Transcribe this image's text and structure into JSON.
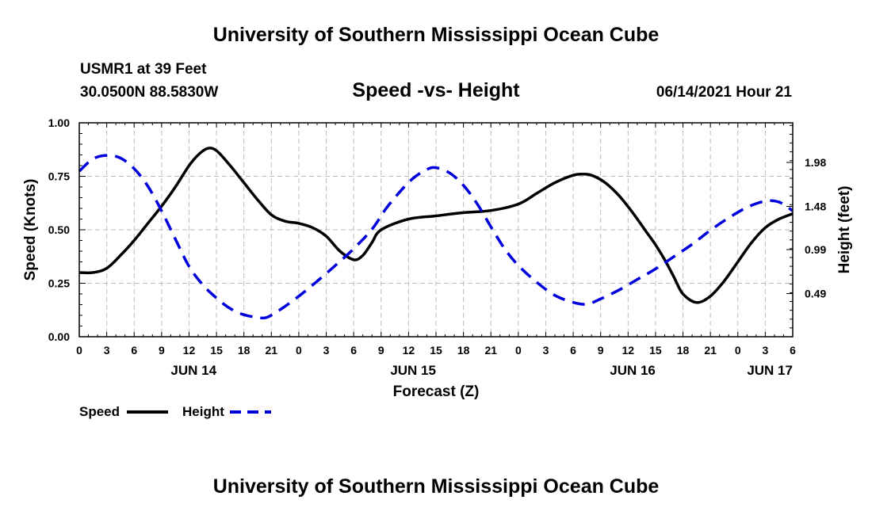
{
  "header": {
    "title": "University of Southern Mississippi Ocean Cube",
    "station": "USMR1 at 39 Feet",
    "coords": "30.0500N  88.5830W",
    "subtitle": "Speed -vs- Height",
    "datetime": "06/14/2021 Hour 21"
  },
  "footer": {
    "title": "University of Southern Mississippi Ocean Cube"
  },
  "legend": {
    "speed_label": "Speed",
    "height_label": "Height"
  },
  "chart_data": {
    "type": "line",
    "title": "Speed -vs- Height",
    "xlabel": "Forecast (Z)",
    "ylabel": "Speed (Knots)",
    "y2label": "Height (feet)",
    "x_hour_range": [
      0,
      78
    ],
    "xticks": [
      {
        "h": 0,
        "label": "0"
      },
      {
        "h": 3,
        "label": "3"
      },
      {
        "h": 6,
        "label": "6"
      },
      {
        "h": 9,
        "label": "9"
      },
      {
        "h": 12,
        "label": "12"
      },
      {
        "h": 15,
        "label": "15"
      },
      {
        "h": 18,
        "label": "18"
      },
      {
        "h": 21,
        "label": "21"
      },
      {
        "h": 24,
        "label": "0"
      },
      {
        "h": 27,
        "label": "3"
      },
      {
        "h": 30,
        "label": "6"
      },
      {
        "h": 33,
        "label": "9"
      },
      {
        "h": 36,
        "label": "12"
      },
      {
        "h": 39,
        "label": "15"
      },
      {
        "h": 42,
        "label": "18"
      },
      {
        "h": 45,
        "label": "21"
      },
      {
        "h": 48,
        "label": "0"
      },
      {
        "h": 51,
        "label": "3"
      },
      {
        "h": 54,
        "label": "6"
      },
      {
        "h": 57,
        "label": "9"
      },
      {
        "h": 60,
        "label": "12"
      },
      {
        "h": 63,
        "label": "15"
      },
      {
        "h": 66,
        "label": "18"
      },
      {
        "h": 69,
        "label": "21"
      },
      {
        "h": 72,
        "label": "0"
      },
      {
        "h": 75,
        "label": "3"
      },
      {
        "h": 78,
        "label": "6"
      }
    ],
    "day_labels": [
      {
        "h": 12.5,
        "label": "JUN 14"
      },
      {
        "h": 36.5,
        "label": "JUN 15"
      },
      {
        "h": 60.5,
        "label": "JUN 16"
      },
      {
        "h": 75.5,
        "label": "JUN 17"
      }
    ],
    "ylim": [
      0,
      1
    ],
    "yticks": [
      0,
      0.25,
      0.5,
      0.75,
      1
    ],
    "ytick_labels": [
      "0.00",
      "0.25",
      "0.50",
      "0.75",
      "1.00"
    ],
    "y2lim": [
      0,
      2.43
    ],
    "y2ticks": [
      0.49,
      0.99,
      1.48,
      1.98
    ],
    "y2tick_labels": [
      "0.49",
      "0.99",
      "1.48",
      "1.98"
    ],
    "grid": true,
    "series": [
      {
        "name": "Speed",
        "axis": "left",
        "color": "#000000",
        "dashed": false,
        "x": [
          0,
          1.5,
          3,
          4.5,
          6,
          7.5,
          9,
          10.5,
          12,
          13,
          14,
          15,
          16.5,
          18,
          19.5,
          21,
          22.5,
          24,
          25.5,
          27,
          28.5,
          30,
          31,
          32,
          33,
          36,
          39,
          42,
          45,
          48,
          50,
          52,
          54,
          55,
          56,
          57.5,
          59,
          60.5,
          62,
          63,
          64,
          65,
          66,
          67.5,
          69,
          70.5,
          72,
          73.5,
          75,
          76.5,
          78
        ],
        "values": [
          0.3,
          0.3,
          0.32,
          0.38,
          0.45,
          0.53,
          0.61,
          0.7,
          0.8,
          0.85,
          0.88,
          0.87,
          0.8,
          0.72,
          0.64,
          0.57,
          0.54,
          0.53,
          0.51,
          0.47,
          0.4,
          0.36,
          0.38,
          0.44,
          0.5,
          0.55,
          0.565,
          0.58,
          0.59,
          0.62,
          0.67,
          0.72,
          0.755,
          0.76,
          0.755,
          0.72,
          0.66,
          0.58,
          0.49,
          0.43,
          0.36,
          0.28,
          0.2,
          0.16,
          0.19,
          0.26,
          0.35,
          0.44,
          0.51,
          0.55,
          0.575
        ]
      },
      {
        "name": "Height",
        "axis": "right",
        "color": "#0000dd",
        "dashed": true,
        "x": [
          0,
          1.5,
          3,
          4.5,
          6,
          7.5,
          9,
          10.5,
          12,
          13.5,
          15,
          16.5,
          18,
          19.5,
          20.5,
          22,
          24,
          26,
          28,
          30,
          32,
          33.5,
          35,
          36.5,
          38,
          39,
          40.5,
          42,
          43.5,
          45,
          46.5,
          48,
          50,
          52,
          54,
          55.5,
          57,
          59,
          61,
          63,
          65,
          67,
          69,
          71,
          73,
          75,
          76.5,
          78
        ],
        "values": [
          1.88,
          2.02,
          2.06,
          2.03,
          1.91,
          1.71,
          1.43,
          1.11,
          0.8,
          0.59,
          0.44,
          0.32,
          0.25,
          0.22,
          0.22,
          0.31,
          0.46,
          0.63,
          0.81,
          1.0,
          1.22,
          1.45,
          1.64,
          1.8,
          1.9,
          1.92,
          1.86,
          1.72,
          1.51,
          1.25,
          1.0,
          0.81,
          0.62,
          0.47,
          0.39,
          0.37,
          0.43,
          0.53,
          0.65,
          0.77,
          0.91,
          1.05,
          1.21,
          1.35,
          1.47,
          1.54,
          1.53,
          1.43
        ]
      }
    ]
  }
}
